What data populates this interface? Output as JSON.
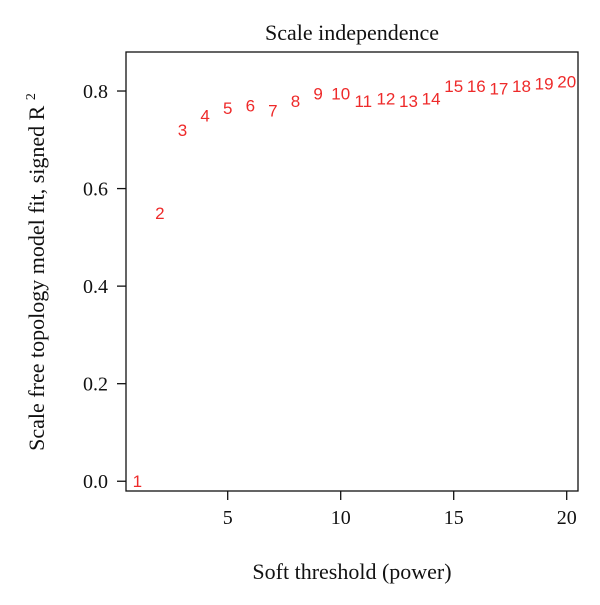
{
  "chart_data": {
    "type": "scatter",
    "title": "Scale independence",
    "xlabel": "Soft threshold (power)",
    "ylabel_main": "Scale free topology model fit, signed R",
    "ylabel_sup": "2",
    "xlim": [
      0.5,
      20.5
    ],
    "ylim": [
      -0.02,
      0.88
    ],
    "x_ticks": [
      5,
      10,
      15,
      20
    ],
    "y_ticks": [
      0.0,
      0.2,
      0.4,
      0.6,
      0.8
    ],
    "y_tick_labels": [
      "0.0",
      "0.2",
      "0.4",
      "0.6",
      "0.8"
    ],
    "point_color": "#ee2a2a",
    "grid": false,
    "points": [
      {
        "x": 1,
        "y": 0.0,
        "label": "1"
      },
      {
        "x": 2,
        "y": 0.55,
        "label": "2"
      },
      {
        "x": 3,
        "y": 0.72,
        "label": "3"
      },
      {
        "x": 4,
        "y": 0.75,
        "label": "4"
      },
      {
        "x": 5,
        "y": 0.765,
        "label": "5"
      },
      {
        "x": 6,
        "y": 0.77,
        "label": "6"
      },
      {
        "x": 7,
        "y": 0.76,
        "label": "7"
      },
      {
        "x": 8,
        "y": 0.78,
        "label": "8"
      },
      {
        "x": 9,
        "y": 0.795,
        "label": "9"
      },
      {
        "x": 10,
        "y": 0.795,
        "label": "10"
      },
      {
        "x": 11,
        "y": 0.78,
        "label": "11"
      },
      {
        "x": 12,
        "y": 0.785,
        "label": "12"
      },
      {
        "x": 13,
        "y": 0.78,
        "label": "13"
      },
      {
        "x": 14,
        "y": 0.785,
        "label": "14"
      },
      {
        "x": 15,
        "y": 0.81,
        "label": "15"
      },
      {
        "x": 16,
        "y": 0.81,
        "label": "16"
      },
      {
        "x": 17,
        "y": 0.805,
        "label": "17"
      },
      {
        "x": 18,
        "y": 0.81,
        "label": "18"
      },
      {
        "x": 19,
        "y": 0.815,
        "label": "19"
      },
      {
        "x": 20,
        "y": 0.82,
        "label": "20"
      }
    ]
  }
}
